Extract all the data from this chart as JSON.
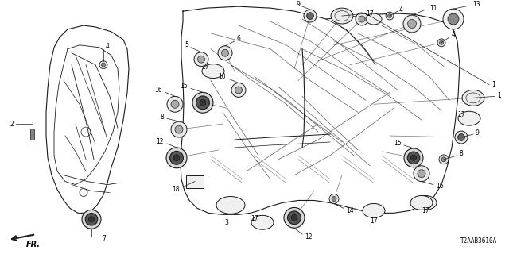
{
  "bg_color": "#ffffff",
  "fig_width": 6.4,
  "fig_height": 3.2,
  "part_code": "T2AAB3610A",
  "fr_label": "FR.",
  "line_color": "#1a1a1a",
  "text_color": "#000000",
  "dpi": 100
}
